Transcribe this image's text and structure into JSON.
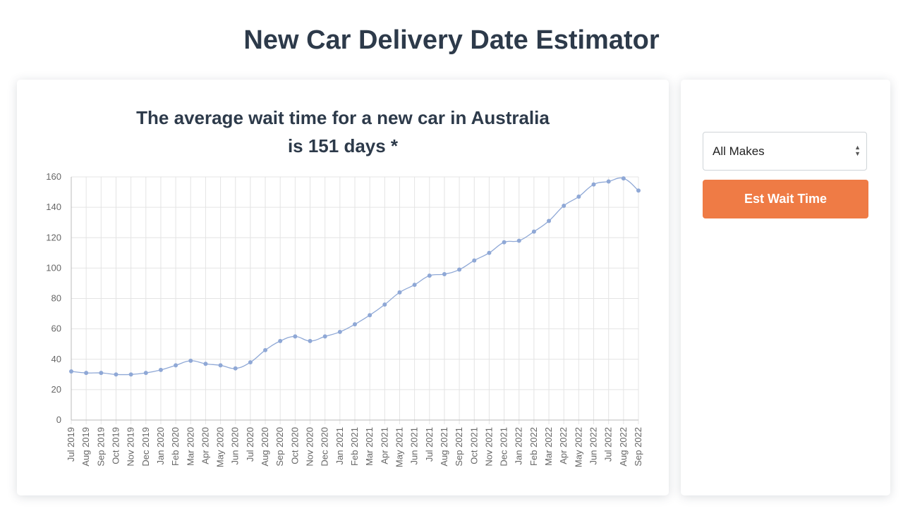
{
  "header": {
    "title": "New Car Delivery Date Estimator"
  },
  "chart_card": {
    "heading_line1": "The average wait time for a new car in Australia",
    "heading_line2": "is 151 days *"
  },
  "sidebar": {
    "select_value": "All Makes",
    "button_label": "Est Wait Time",
    "accent_color": "#ef7b45"
  },
  "chart_data": {
    "type": "line",
    "title": "",
    "xlabel": "",
    "ylabel": "",
    "ylim": [
      0,
      160
    ],
    "yticks": [
      0,
      20,
      40,
      60,
      80,
      100,
      120,
      140,
      160
    ],
    "grid": true,
    "line_color": "#8fa8d6",
    "categories": [
      "Jul 2019",
      "Aug 2019",
      "Sep 2019",
      "Oct 2019",
      "Nov 2019",
      "Dec 2019",
      "Jan 2020",
      "Feb 2020",
      "Mar 2020",
      "Apr 2020",
      "May 2020",
      "Jun 2020",
      "Jul 2020",
      "Aug 2020",
      "Sep 2020",
      "Oct 2020",
      "Nov 2020",
      "Dec 2020",
      "Jan 2021",
      "Feb 2021",
      "Mar 2021",
      "Apr 2021",
      "May 2021",
      "Jun 2021",
      "Jul 2021",
      "Aug 2021",
      "Sep 2021",
      "Oct 2021",
      "Nov 2021",
      "Dec 2021",
      "Jan 2022",
      "Feb 2022",
      "Mar 2022",
      "Apr 2022",
      "May 2022",
      "Jun 2022",
      "Jul 2022",
      "Aug 2022",
      "Sep 2022"
    ],
    "values": [
      32,
      31,
      31,
      30,
      30,
      31,
      33,
      36,
      39,
      37,
      36,
      34,
      38,
      46,
      52,
      55,
      52,
      55,
      58,
      63,
      69,
      76,
      84,
      89,
      95,
      96,
      99,
      105,
      110,
      117,
      118,
      124,
      131,
      141,
      147,
      155,
      157,
      159,
      151
    ]
  }
}
